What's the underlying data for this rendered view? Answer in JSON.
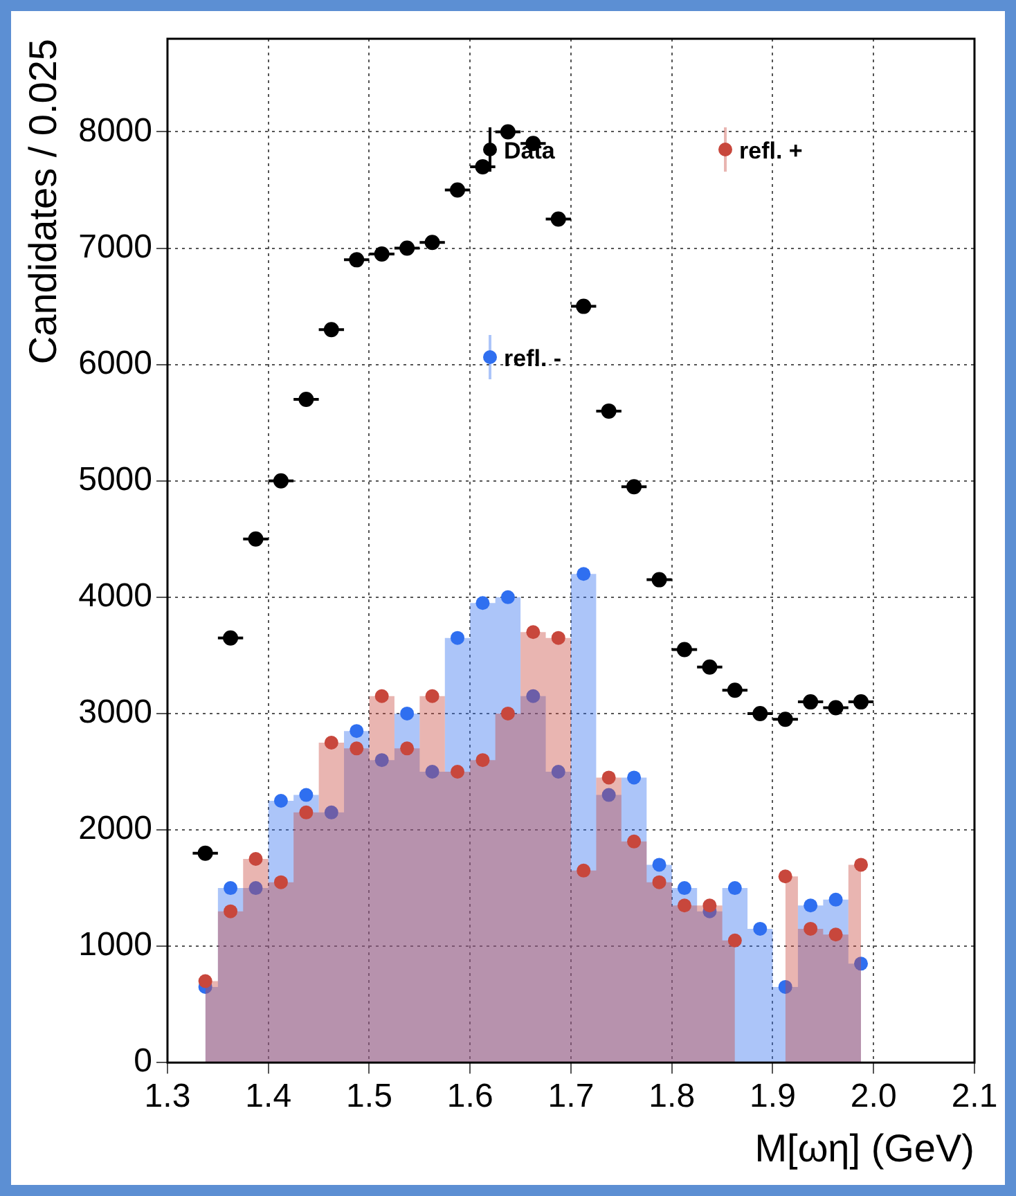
{
  "chart_data": {
    "type": "area",
    "xlabel": "M[ωη] (GeV)",
    "ylabel": "Candidates / 0.025",
    "x": [
      1.3375,
      1.3625,
      1.3875,
      1.4125,
      1.4375,
      1.4625,
      1.4875,
      1.5125,
      1.5375,
      1.5625,
      1.5875,
      1.6125,
      1.6375,
      1.6625,
      1.6875,
      1.7125,
      1.7375,
      1.7625,
      1.7875,
      1.8125,
      1.8375,
      1.8625,
      1.8875,
      1.9125,
      1.9375,
      1.9625,
      1.9875
    ],
    "series": [
      {
        "name": "Data",
        "type": "scatter",
        "color": "#000000",
        "values": [
          1800,
          3650,
          4500,
          5000,
          5700,
          6300,
          6900,
          6950,
          7000,
          7050,
          7500,
          7700,
          8000,
          7900,
          7250,
          6500,
          5600,
          4950,
          4150,
          3550,
          3400,
          3200,
          3000,
          2950,
          3100,
          3050,
          3100
        ],
        "xerrors": [
          0.0125,
          0.0125,
          0.0125,
          0.0125,
          0.0125,
          0.0125,
          0.0125,
          0.0125,
          0.0125,
          0.0125,
          0.0125,
          0.0125,
          0.0125,
          0.0125,
          0.0125,
          0.0125,
          0.0125,
          0.0125,
          0.0125,
          0.0125,
          0.0125,
          0.0125,
          0.0125,
          0.0125,
          0.0125,
          0.0125,
          0.0125
        ]
      },
      {
        "name": "refl. +",
        "color": "#c8473c",
        "values": [
          700,
          1300,
          1750,
          1550,
          2150,
          2750,
          2700,
          3150,
          2700,
          3150,
          2500,
          2600,
          3000,
          3700,
          3650,
          1650,
          2450,
          1900,
          1550,
          1350,
          1350,
          1050,
          null,
          1600,
          1150,
          1100,
          1700
        ]
      },
      {
        "name": "refl. -",
        "color": "#2f6ff0",
        "values": [
          650,
          1500,
          1500,
          2250,
          2300,
          2150,
          2850,
          2600,
          3000,
          2500,
          3650,
          3950,
          4000,
          3150,
          2500,
          4200,
          2300,
          2450,
          1700,
          1500,
          1300,
          1500,
          1150,
          650,
          1350,
          1400,
          850
        ]
      }
    ],
    "xlim": [
      1.3,
      2.1
    ],
    "xticks": [
      1.3,
      1.4,
      1.5,
      1.6,
      1.7,
      1.8,
      1.9,
      {
        "value": 2.0,
        "label": "2.0"
      },
      2.1
    ],
    "ylim": [
      0,
      8800
    ],
    "yticks": [
      0,
      1000,
      2000,
      3000,
      4000,
      5000,
      6000,
      7000,
      8000
    ],
    "grid": true,
    "legend": "top right",
    "marker": "circle"
  }
}
